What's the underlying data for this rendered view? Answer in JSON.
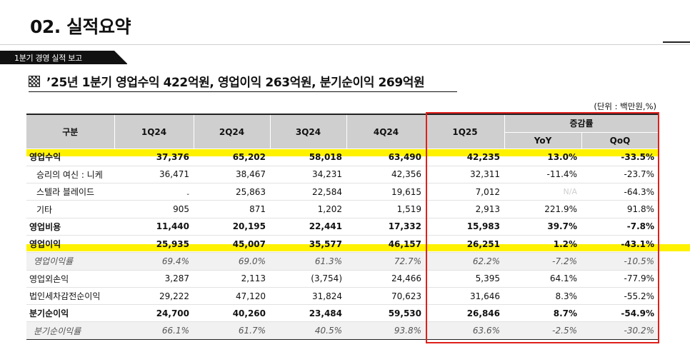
{
  "page": {
    "title": "02. 실적요약",
    "section_tab": "1분기 경영 실적 보고",
    "headline": "’25년 1분기 영업수익 422억원, 영업이익 263억원, 분기순이익 269억원",
    "unit_note": "(단위 : 백만원,%)"
  },
  "table": {
    "header": {
      "category": "구분",
      "periods": [
        "1Q24",
        "2Q24",
        "3Q24",
        "4Q24",
        "1Q25"
      ],
      "change_group": "증감률",
      "yoy": "YoY",
      "qoq": "QoQ"
    },
    "rows": [
      {
        "label": "영업수익",
        "values": [
          "37,376",
          "65,202",
          "58,018",
          "63,490",
          "42,235",
          "13.0%",
          "-33.5%"
        ]
      },
      {
        "label": "승리의 여신 : 니케",
        "values": [
          "36,471",
          "38,467",
          "34,231",
          "42,356",
          "32,311",
          "-11.4%",
          "-23.7%"
        ]
      },
      {
        "label": "스텔라 블레이드",
        "values": [
          "-",
          "25,863",
          "22,584",
          "19,615",
          "7,012",
          "N/A",
          "-64.3%"
        ]
      },
      {
        "label": "기타",
        "values": [
          "905",
          "871",
          "1,202",
          "1,519",
          "2,913",
          "221.9%",
          "91.8%"
        ]
      },
      {
        "label": "영업비용",
        "values": [
          "11,440",
          "20,195",
          "22,441",
          "17,332",
          "15,983",
          "39.7%",
          "-7.8%"
        ]
      },
      {
        "label": "영업이익",
        "values": [
          "25,935",
          "45,007",
          "35,577",
          "46,157",
          "26,251",
          "1.2%",
          "-43.1%"
        ]
      },
      {
        "label": "영업이익률",
        "values": [
          "69.4%",
          "69.0%",
          "61.3%",
          "72.7%",
          "62.2%",
          "-7.2%",
          "-10.5%"
        ]
      },
      {
        "label": "영업외손익",
        "values": [
          "3,287",
          "2,113",
          "(3,754)",
          "24,466",
          "5,395",
          "64.1%",
          "-77.9%"
        ]
      },
      {
        "label": "법인세차감전순이익",
        "values": [
          "29,222",
          "47,120",
          "31,824",
          "70,623",
          "31,646",
          "8.3%",
          "-55.2%"
        ]
      },
      {
        "label": "분기순이익",
        "values": [
          "24,700",
          "40,260",
          "23,484",
          "59,530",
          "26,846",
          "8.7%",
          "-54.9%"
        ]
      },
      {
        "label": "분기순이익률",
        "values": [
          "66.1%",
          "61.7%",
          "40.5%",
          "93.8%",
          "63.6%",
          "-2.5%",
          "-30.2%"
        ]
      }
    ]
  },
  "colors": {
    "highlight": "#fff200",
    "box": "#e0201b",
    "header_bg": "#cfcfcf"
  }
}
